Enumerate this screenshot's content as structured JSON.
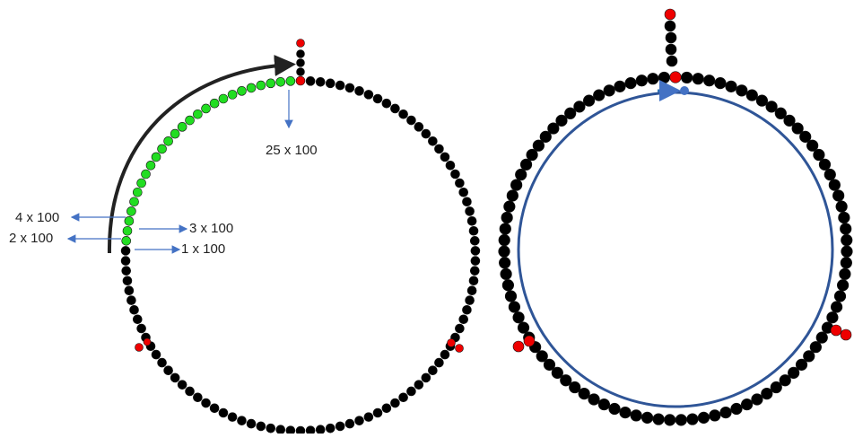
{
  "labels": {
    "top": "25 x 100",
    "four": "4 x 100",
    "three": "3 x 100",
    "two": "2 x 100",
    "one": "1 x 100"
  }
}
